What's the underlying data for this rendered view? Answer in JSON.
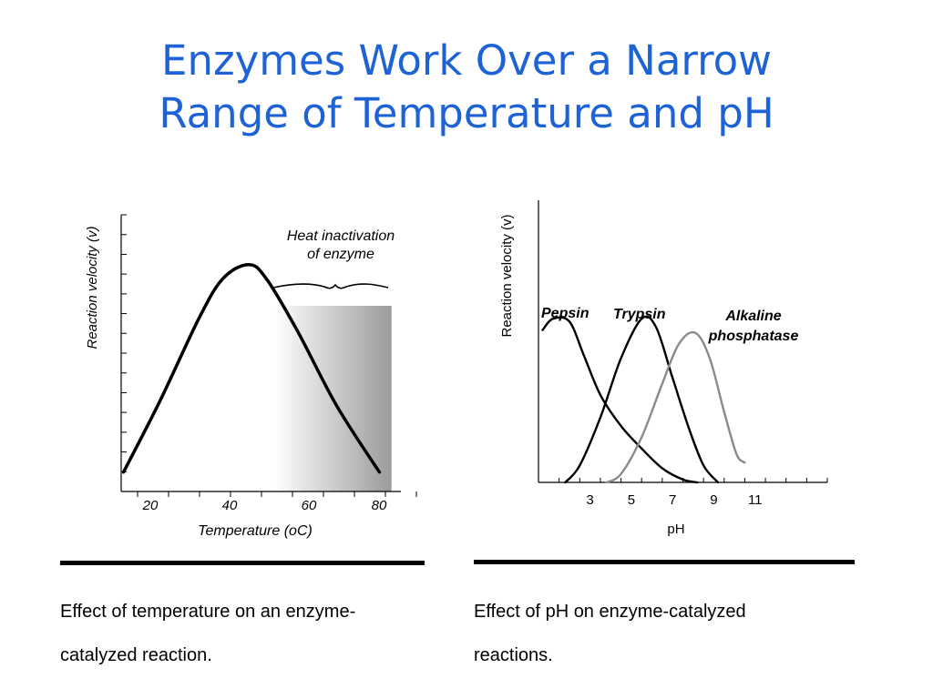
{
  "title_lines": [
    "Enzymes Work Over a Narrow",
    "Range of Temperature and pH"
  ],
  "captions": {
    "left": "Effect of temperature on an enzyme-catalyzed reaction.",
    "right": "Effect of pH on enzyme-catalyzed reactions."
  },
  "colors": {
    "title": "#1e63d6",
    "curve": "#000000",
    "alkaline_curve": "#8a8a8a"
  },
  "chart_data": [
    {
      "type": "line",
      "title": "",
      "xlabel": "Temperature (oC)",
      "ylabel": "Reaction velocity (v)",
      "x_ticks": [
        "20",
        "40",
        "60",
        "80"
      ],
      "xlim": [
        15,
        85
      ],
      "ylim": [
        0,
        1
      ],
      "annotation": "Heat inactivation of enzyme",
      "annotation_lines": [
        "Heat inactivation",
        "of enzyme"
      ],
      "shaded_region": {
        "from": 54,
        "to": 84,
        "label": "Heat inactivation of enzyme"
      },
      "series": [
        {
          "x": [
            15.6,
            25,
            35,
            41,
            47.5,
            52,
            60,
            70,
            80.9
          ],
          "y": [
            0.07,
            0.33,
            0.63,
            0.77,
            0.82,
            0.77,
            0.58,
            0.31,
            0.07
          ]
        }
      ]
    },
    {
      "type": "line",
      "title": "",
      "xlabel": "pH",
      "ylabel": "Reaction velocity (v)",
      "x_ticks": [
        "3",
        "5",
        "7",
        "9",
        "11"
      ],
      "xlim": [
        0.5,
        14.5
      ],
      "ylim": [
        0,
        1
      ],
      "series": [
        {
          "name": "Pepsin",
          "x": [
            0.7,
            1.2,
            2,
            2.7,
            3.5,
            4.5,
            5.5,
            6.5,
            7.5,
            8.2
          ],
          "y": [
            0.54,
            0.58,
            0.57,
            0.45,
            0.31,
            0.2,
            0.12,
            0.05,
            0.01,
            0
          ]
        },
        {
          "name": "Trypsin",
          "x": [
            1.8,
            2.5,
            3.5,
            4.5,
            5.5,
            6.2,
            7,
            7.8,
            8.5,
            9.2
          ],
          "y": [
            0,
            0.06,
            0.23,
            0.44,
            0.58,
            0.55,
            0.37,
            0.19,
            0.06,
            0
          ]
        },
        {
          "name": "Alkaline phosphatase",
          "x": [
            3.8,
            4.5,
            5.5,
            6.5,
            7.3,
            8.1,
            8.8,
            9.5,
            10.1,
            10.5
          ],
          "y": [
            0,
            0.03,
            0.16,
            0.35,
            0.49,
            0.53,
            0.44,
            0.25,
            0.1,
            0.07
          ]
        }
      ]
    }
  ]
}
